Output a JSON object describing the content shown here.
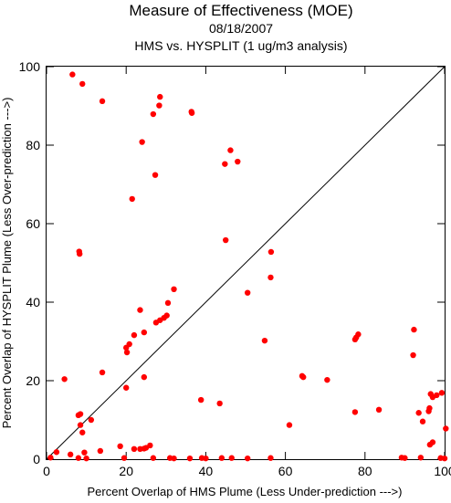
{
  "chart_data": {
    "type": "scatter",
    "title": "Measure of Effectiveness (MOE)",
    "subtitle_date": "08/18/2007",
    "subtitle": "HMS vs. HYSPLIT  (1 ug/m3 analysis)",
    "xlabel": "Percent Overlap of HMS Plume (Less Under-prediction --->)",
    "ylabel": "Percent Overlap of HYSPLIT Plume (Less Over-prediction --->)",
    "xlim": [
      0,
      100
    ],
    "ylim": [
      0,
      100
    ],
    "x_ticks": [
      0,
      20,
      40,
      60,
      80,
      100
    ],
    "y_ticks": [
      0,
      20,
      40,
      60,
      80,
      100
    ],
    "grid": false,
    "diagonal_reference_line": true,
    "point_color": "#ff0000",
    "line_color": "#000000",
    "points": [
      [
        6.5,
        98.0
      ],
      [
        9.0,
        95.6
      ],
      [
        14.0,
        91.2
      ],
      [
        28.5,
        92.3
      ],
      [
        28.3,
        90.1
      ],
      [
        26.8,
        87.9
      ],
      [
        36.4,
        88.5
      ],
      [
        36.5,
        88.2
      ],
      [
        24.0,
        80.8
      ],
      [
        46.2,
        78.7
      ],
      [
        48.0,
        75.8
      ],
      [
        44.8,
        75.2
      ],
      [
        27.3,
        72.4
      ],
      [
        21.5,
        66.3
      ],
      [
        8.2,
        52.9
      ],
      [
        8.3,
        52.3
      ],
      [
        45.0,
        55.8
      ],
      [
        56.4,
        52.8
      ],
      [
        56.3,
        46.3
      ],
      [
        32.0,
        43.3
      ],
      [
        50.5,
        42.4
      ],
      [
        30.5,
        39.8
      ],
      [
        23.5,
        38.0
      ],
      [
        30.2,
        36.6
      ],
      [
        29.5,
        36.0
      ],
      [
        28.5,
        35.4
      ],
      [
        27.5,
        34.8
      ],
      [
        24.5,
        32.3
      ],
      [
        22.0,
        31.6
      ],
      [
        20.8,
        29.3
      ],
      [
        20.0,
        28.4
      ],
      [
        20.2,
        27.2
      ],
      [
        54.8,
        30.2
      ],
      [
        78.3,
        31.8
      ],
      [
        77.8,
        31.0
      ],
      [
        77.5,
        30.5
      ],
      [
        92.3,
        33.0
      ],
      [
        4.5,
        20.4
      ],
      [
        14.0,
        22.1
      ],
      [
        24.5,
        20.9
      ],
      [
        64.2,
        21.2
      ],
      [
        64.5,
        20.9
      ],
      [
        70.5,
        20.2
      ],
      [
        92.1,
        26.5
      ],
      [
        20.0,
        18.2
      ],
      [
        38.8,
        15.1
      ],
      [
        43.5,
        14.2
      ],
      [
        8.0,
        11.2
      ],
      [
        8.5,
        11.5
      ],
      [
        11.2,
        10.0
      ],
      [
        8.5,
        8.7
      ],
      [
        9.0,
        6.8
      ],
      [
        61.0,
        8.7
      ],
      [
        77.5,
        12.0
      ],
      [
        83.5,
        12.6
      ],
      [
        93.5,
        11.8
      ],
      [
        94.5,
        9.6
      ],
      [
        96.0,
        12.2
      ],
      [
        96.2,
        13.0
      ],
      [
        96.5,
        16.6
      ],
      [
        97.0,
        15.8
      ],
      [
        98.0,
        16.3
      ],
      [
        99.3,
        16.9
      ],
      [
        96.3,
        3.7
      ],
      [
        97.0,
        4.3
      ],
      [
        100.3,
        7.8
      ],
      [
        2.5,
        1.8
      ],
      [
        6.0,
        1.2
      ],
      [
        9.5,
        1.7
      ],
      [
        13.5,
        2.1
      ],
      [
        18.5,
        3.3
      ],
      [
        22.0,
        2.6
      ],
      [
        23.5,
        2.6
      ],
      [
        24.5,
        2.7
      ],
      [
        25.0,
        2.9
      ],
      [
        26.0,
        3.5
      ],
      [
        1.0,
        0.4
      ],
      [
        8.0,
        0.3
      ],
      [
        10.0,
        0.2
      ],
      [
        19.5,
        0.3
      ],
      [
        26.8,
        0.3
      ],
      [
        31.0,
        0.3
      ],
      [
        32.0,
        0.2
      ],
      [
        36.0,
        0.2
      ],
      [
        39.0,
        0.3
      ],
      [
        40.0,
        0.2
      ],
      [
        44.0,
        0.3
      ],
      [
        46.5,
        0.3
      ],
      [
        50.5,
        0.2
      ],
      [
        56.3,
        0.3
      ],
      [
        89.2,
        0.4
      ],
      [
        90.0,
        0.3
      ],
      [
        94.0,
        0.4
      ],
      [
        99.0,
        0.3
      ],
      [
        100.0,
        0.2
      ]
    ]
  }
}
